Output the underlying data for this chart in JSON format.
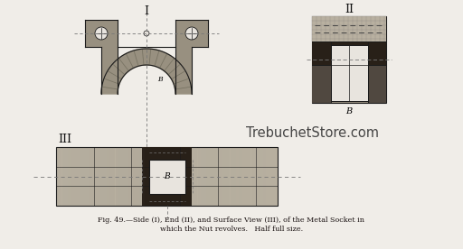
{
  "bg_color": "#f0ede8",
  "caption_line1": "Fig. 49.—Side (I), End (II), and Surface View (III), of the Metal Socket in",
  "caption_line2": "which the Nut revolves.   Half full size.",
  "watermark": "TrebuchetStore.com",
  "roman_I": "I",
  "roman_II": "II",
  "roman_III": "III",
  "label_B": "B",
  "cl_color": "#777777",
  "outline_color": "#1a1a1a",
  "metal_light": "#b8b0a0",
  "metal_mid": "#989080",
  "metal_dark": "#504840",
  "metal_vdark": "#282018",
  "white_box": "#e8e4de",
  "caption_color": "#1a1212"
}
